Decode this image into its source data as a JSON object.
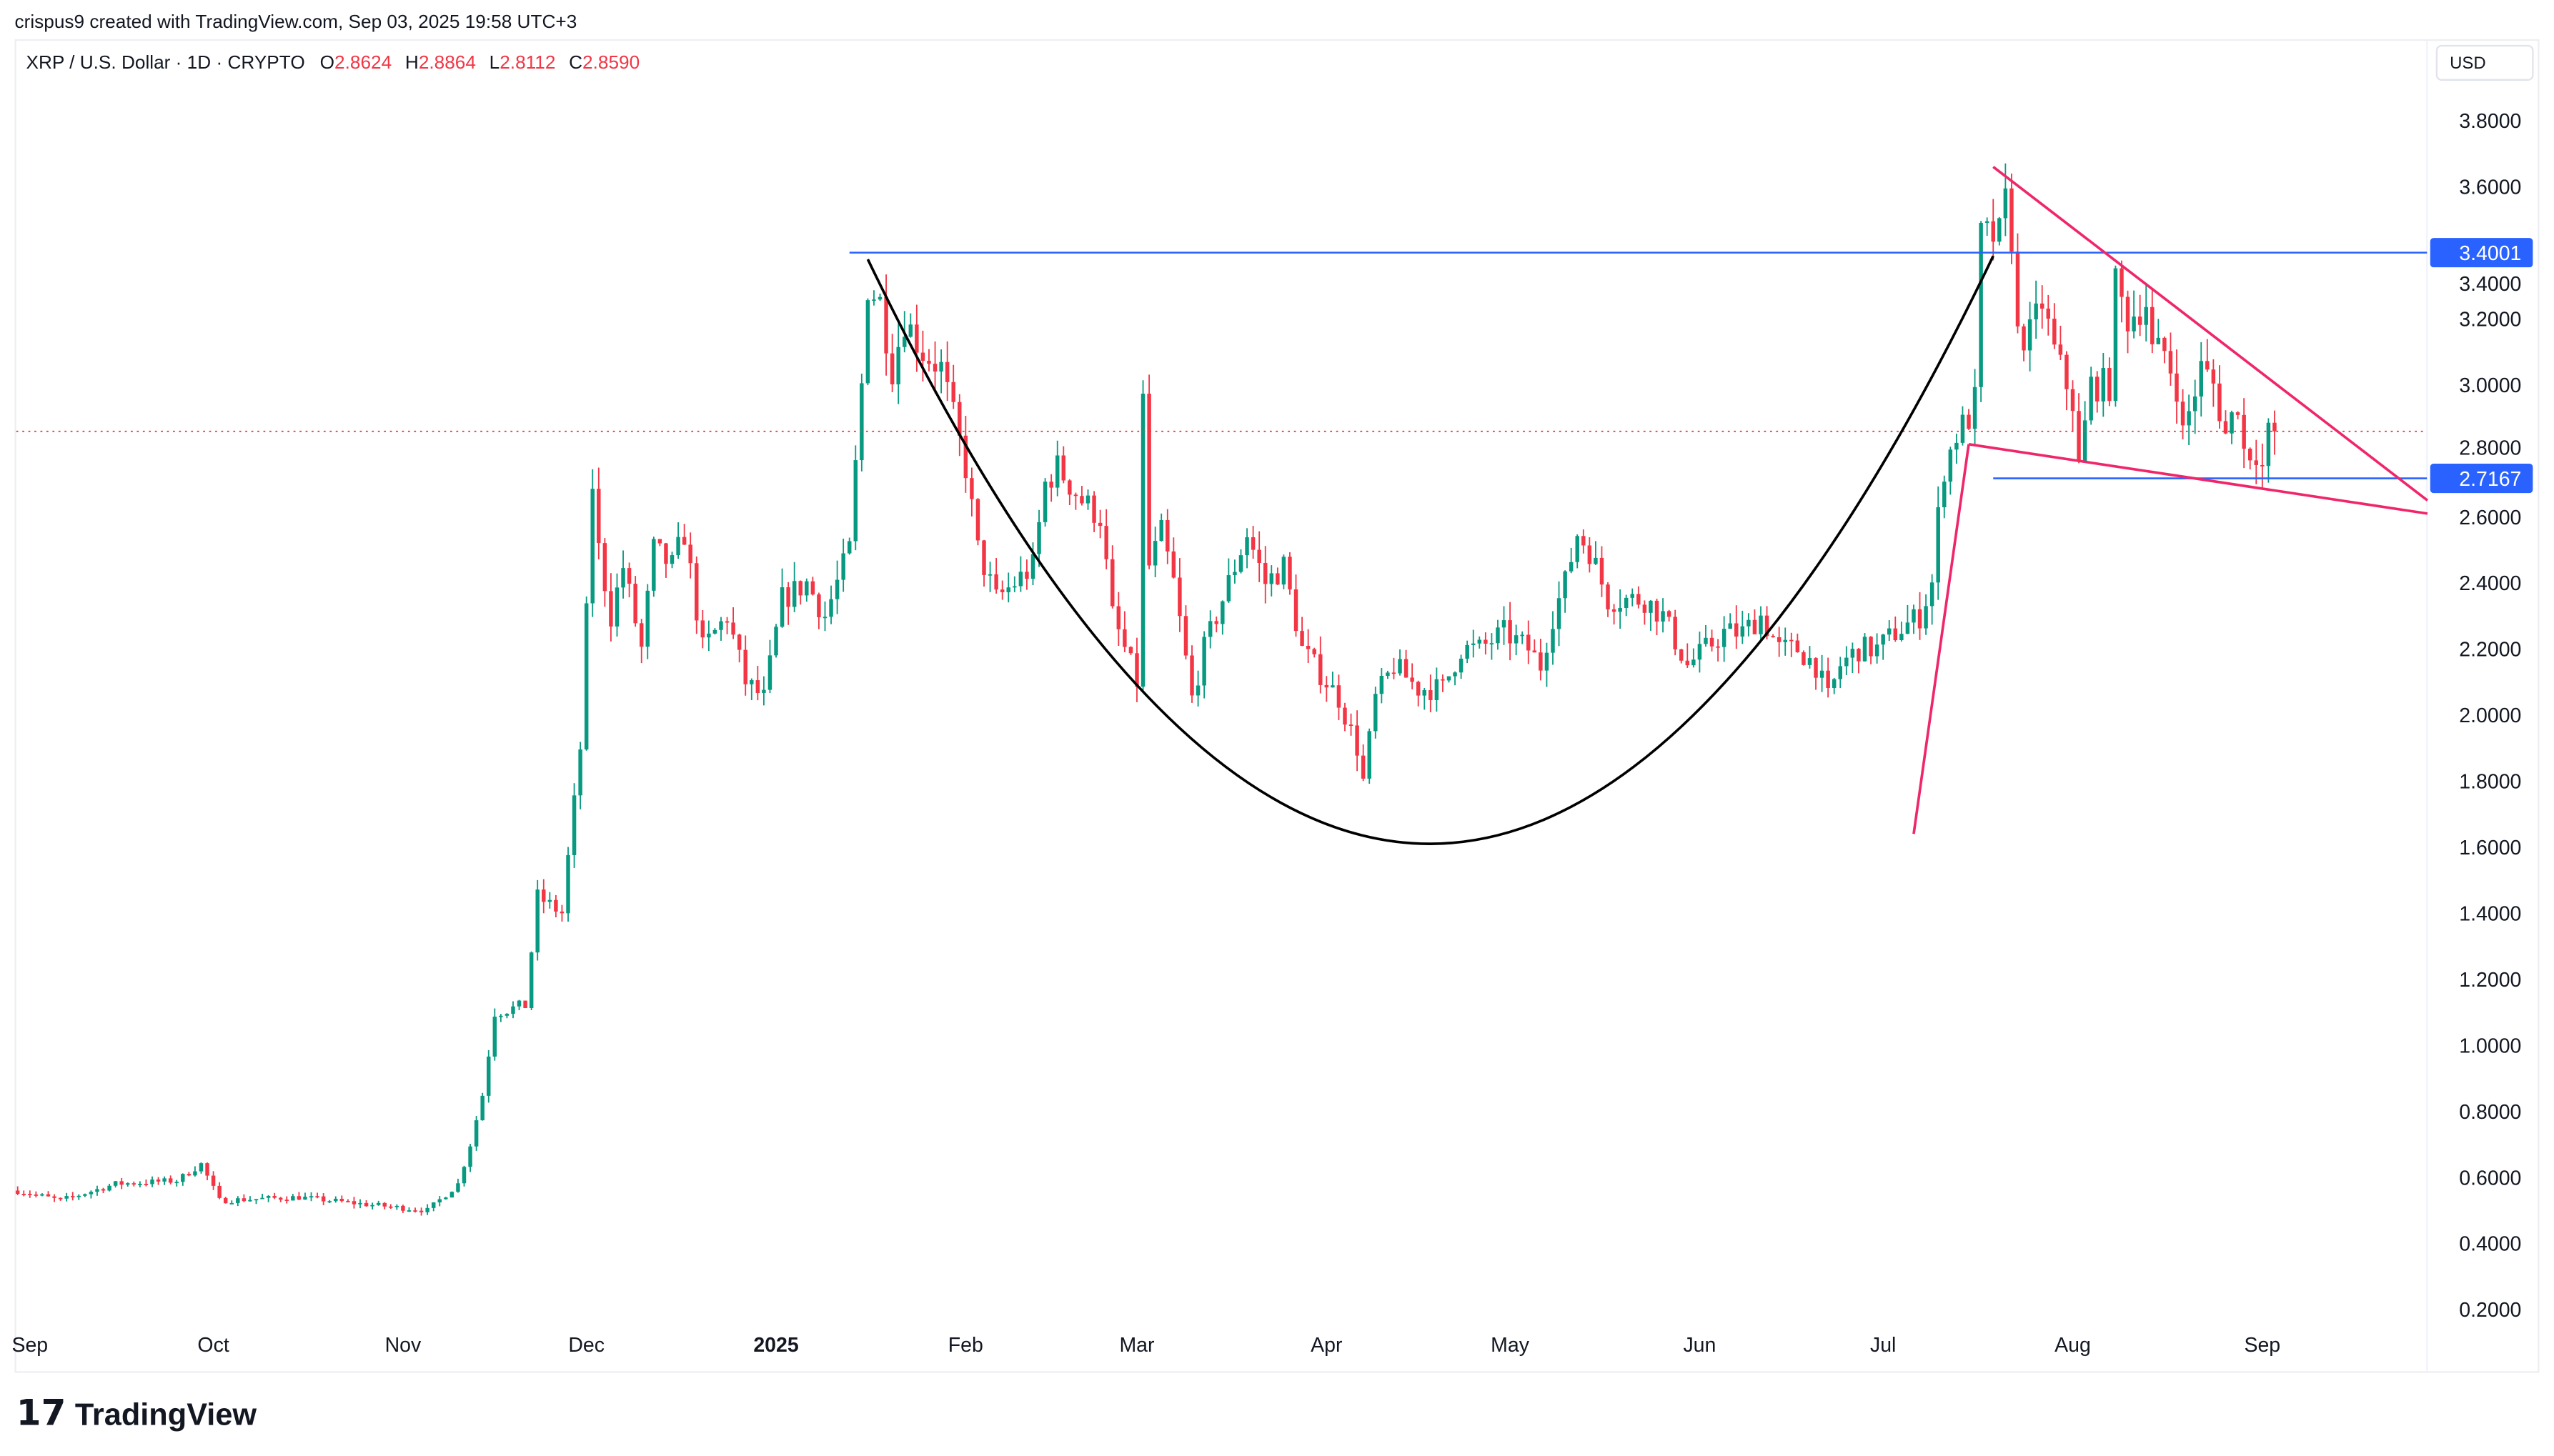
{
  "header": {
    "credit": "crispus9 created with TradingView.com, Sep 03, 2025 19:58 UTC+3",
    "symbol": "XRP / U.S. Dollar · 1D · CRYPTO",
    "o_label": "O",
    "o": "2.8624",
    "h_label": "H",
    "h": "2.8864",
    "l_label": "L",
    "l": "2.8112",
    "c_label": "C",
    "c": "2.8590",
    "currency": "USD"
  },
  "logo": {
    "text": "TradingView"
  },
  "colors": {
    "up": "#089981",
    "down": "#F23645",
    "accent": "#2962FF",
    "pattern": "#F0266A",
    "cup": "#000000"
  },
  "chart_data": {
    "type": "candlestick",
    "title": "XRP / U.S. Dollar · 1D · CRYPTO",
    "ylabel": "USD",
    "ylim": [
      0.1,
      3.9
    ],
    "y_ticks": [
      "3.8000",
      "3.6000",
      "3.4000",
      "3.2000",
      "3.0000",
      "2.8000",
      "2.6000",
      "2.4000",
      "2.2000",
      "2.0000",
      "1.8000",
      "1.6000",
      "1.4000",
      "1.2000",
      "1.0000",
      "0.8000",
      "0.6000",
      "0.4000",
      "0.2000"
    ],
    "x_ticks": [
      {
        "label": "Sep",
        "date": "2024-09-01"
      },
      {
        "label": "Oct",
        "date": "2024-10-01"
      },
      {
        "label": "Nov",
        "date": "2024-11-01"
      },
      {
        "label": "Dec",
        "date": "2024-12-01"
      },
      {
        "label": "2025",
        "date": "2025-01-01",
        "bold": true
      },
      {
        "label": "Feb",
        "date": "2025-02-01"
      },
      {
        "label": "Mar",
        "date": "2025-03-01"
      },
      {
        "label": "Apr",
        "date": "2025-04-01"
      },
      {
        "label": "May",
        "date": "2025-05-01"
      },
      {
        "label": "Jun",
        "date": "2025-06-01"
      },
      {
        "label": "Jul",
        "date": "2025-07-01"
      },
      {
        "label": "Aug",
        "date": "2025-08-01"
      },
      {
        "label": "Sep",
        "date": "2025-09-01"
      }
    ],
    "close_keypoints": [
      [
        "2024-08-30",
        0.56
      ],
      [
        "2024-09-06",
        0.53
      ],
      [
        "2024-09-15",
        0.58
      ],
      [
        "2024-09-25",
        0.59
      ],
      [
        "2024-09-29",
        0.64
      ],
      [
        "2024-10-02",
        0.53
      ],
      [
        "2024-10-15",
        0.54
      ],
      [
        "2024-10-25",
        0.52
      ],
      [
        "2024-11-05",
        0.5
      ],
      [
        "2024-11-10",
        0.58
      ],
      [
        "2024-11-12",
        0.7
      ],
      [
        "2024-11-14",
        0.85
      ],
      [
        "2024-11-16",
        1.1
      ],
      [
        "2024-11-21",
        1.12
      ],
      [
        "2024-11-23",
        1.45
      ],
      [
        "2024-11-27",
        1.4
      ],
      [
        "2024-11-30",
        1.9
      ],
      [
        "2024-12-01",
        2.3
      ],
      [
        "2024-12-02",
        2.7
      ],
      [
        "2024-12-03",
        2.5
      ],
      [
        "2024-12-05",
        2.3
      ],
      [
        "2024-12-07",
        2.45
      ],
      [
        "2024-12-10",
        2.2
      ],
      [
        "2024-12-12",
        2.5
      ],
      [
        "2024-12-15",
        2.45
      ],
      [
        "2024-12-17",
        2.55
      ],
      [
        "2024-12-20",
        2.2
      ],
      [
        "2024-12-24",
        2.3
      ],
      [
        "2024-12-27",
        2.1
      ],
      [
        "2024-12-30",
        2.05
      ],
      [
        "2025-01-02",
        2.35
      ],
      [
        "2025-01-06",
        2.4
      ],
      [
        "2025-01-09",
        2.3
      ],
      [
        "2025-01-13",
        2.5
      ],
      [
        "2025-01-15",
        3.0
      ],
      [
        "2025-01-16",
        3.3
      ],
      [
        "2025-01-18",
        3.25
      ],
      [
        "2025-01-20",
        3.05
      ],
      [
        "2025-01-22",
        3.2
      ],
      [
        "2025-01-25",
        3.1
      ],
      [
        "2025-01-28",
        3.05
      ],
      [
        "2025-02-01",
        2.75
      ],
      [
        "2025-02-03",
        2.5
      ],
      [
        "2025-02-06",
        2.35
      ],
      [
        "2025-02-09",
        2.4
      ],
      [
        "2025-02-12",
        2.45
      ],
      [
        "2025-02-14",
        2.7
      ],
      [
        "2025-02-16",
        2.75
      ],
      [
        "2025-02-20",
        2.65
      ],
      [
        "2025-02-23",
        2.6
      ],
      [
        "2025-02-25",
        2.3
      ],
      [
        "2025-03-01",
        2.1
      ],
      [
        "2025-03-02",
        2.95
      ],
      [
        "2025-03-03",
        2.45
      ],
      [
        "2025-03-05",
        2.55
      ],
      [
        "2025-03-07",
        2.4
      ],
      [
        "2025-03-10",
        2.05
      ],
      [
        "2025-03-12",
        2.2
      ],
      [
        "2025-03-15",
        2.35
      ],
      [
        "2025-03-19",
        2.55
      ],
      [
        "2025-03-22",
        2.4
      ],
      [
        "2025-03-25",
        2.45
      ],
      [
        "2025-03-28",
        2.2
      ],
      [
        "2025-04-01",
        2.1
      ],
      [
        "2025-04-03",
        2.05
      ],
      [
        "2025-04-06",
        1.9
      ],
      [
        "2025-04-07",
        1.8
      ],
      [
        "2025-04-09",
        2.05
      ],
      [
        "2025-04-12",
        2.15
      ],
      [
        "2025-04-16",
        2.08
      ],
      [
        "2025-04-20",
        2.08
      ],
      [
        "2025-04-23",
        2.2
      ],
      [
        "2025-04-26",
        2.2
      ],
      [
        "2025-04-30",
        2.25
      ],
      [
        "2025-05-04",
        2.2
      ],
      [
        "2025-05-06",
        2.15
      ],
      [
        "2025-05-08",
        2.3
      ],
      [
        "2025-05-10",
        2.4
      ],
      [
        "2025-05-12",
        2.55
      ],
      [
        "2025-05-14",
        2.5
      ],
      [
        "2025-05-17",
        2.35
      ],
      [
        "2025-05-20",
        2.35
      ],
      [
        "2025-05-23",
        2.35
      ],
      [
        "2025-05-26",
        2.3
      ],
      [
        "2025-05-30",
        2.15
      ],
      [
        "2025-06-02",
        2.2
      ],
      [
        "2025-06-05",
        2.25
      ],
      [
        "2025-06-08",
        2.25
      ],
      [
        "2025-06-11",
        2.3
      ],
      [
        "2025-06-14",
        2.2
      ],
      [
        "2025-06-17",
        2.2
      ],
      [
        "2025-06-20",
        2.15
      ],
      [
        "2025-06-22",
        2.05
      ],
      [
        "2025-06-24",
        2.15
      ],
      [
        "2025-06-27",
        2.2
      ],
      [
        "2025-06-30",
        2.2
      ],
      [
        "2025-07-03",
        2.25
      ],
      [
        "2025-07-07",
        2.3
      ],
      [
        "2025-07-09",
        2.4
      ],
      [
        "2025-07-10",
        2.6
      ],
      [
        "2025-07-11",
        2.75
      ],
      [
        "2025-07-13",
        2.85
      ],
      [
        "2025-07-15",
        2.9
      ],
      [
        "2025-07-16",
        2.95
      ],
      [
        "2025-07-17",
        3.45
      ],
      [
        "2025-07-18",
        3.45
      ],
      [
        "2025-07-20",
        3.45
      ],
      [
        "2025-07-21",
        3.55
      ],
      [
        "2025-07-22",
        3.45
      ],
      [
        "2025-07-23",
        3.15
      ],
      [
        "2025-07-25",
        3.15
      ],
      [
        "2025-07-27",
        3.25
      ],
      [
        "2025-07-29",
        3.1
      ],
      [
        "2025-08-01",
        2.95
      ],
      [
        "2025-08-02",
        2.75
      ],
      [
        "2025-08-04",
        3.0
      ],
      [
        "2025-08-07",
        3.0
      ],
      [
        "2025-08-08",
        3.3
      ],
      [
        "2025-08-10",
        3.2
      ],
      [
        "2025-08-13",
        3.25
      ],
      [
        "2025-08-14",
        3.1
      ],
      [
        "2025-08-16",
        3.1
      ],
      [
        "2025-08-18",
        3.0
      ],
      [
        "2025-08-19",
        2.85
      ],
      [
        "2025-08-22",
        3.05
      ],
      [
        "2025-08-24",
        3.0
      ],
      [
        "2025-08-26",
        2.85
      ],
      [
        "2025-08-28",
        2.95
      ],
      [
        "2025-08-29",
        2.8
      ],
      [
        "2025-08-31",
        2.8
      ],
      [
        "2025-09-01",
        2.75
      ],
      [
        "2025-09-02",
        2.85
      ],
      [
        "2025-09-03",
        2.859
      ]
    ],
    "last_price": 2.859,
    "annotations": {
      "resistance": {
        "price": 3.4001,
        "label": "3.4001",
        "from": "2025-01-13"
      },
      "support": {
        "price": 2.7167,
        "label": "2.7167",
        "from": "2025-07-19"
      },
      "cup": {
        "start": [
          "2025-01-16",
          3.38
        ],
        "bottom": [
          "2025-04-18",
          1.61
        ],
        "end": [
          "2025-07-19",
          3.39
        ]
      },
      "flagpole": [
        [
          "2025-07-06",
          1.64
        ],
        [
          "2025-07-15",
          2.82
        ]
      ],
      "wedge_upper": [
        [
          "2025-07-19",
          3.66
        ],
        [
          "2025-09-28",
          2.65
        ]
      ],
      "wedge_lower": [
        [
          "2025-07-15",
          2.82
        ],
        [
          "2025-09-28",
          2.61
        ]
      ]
    }
  }
}
